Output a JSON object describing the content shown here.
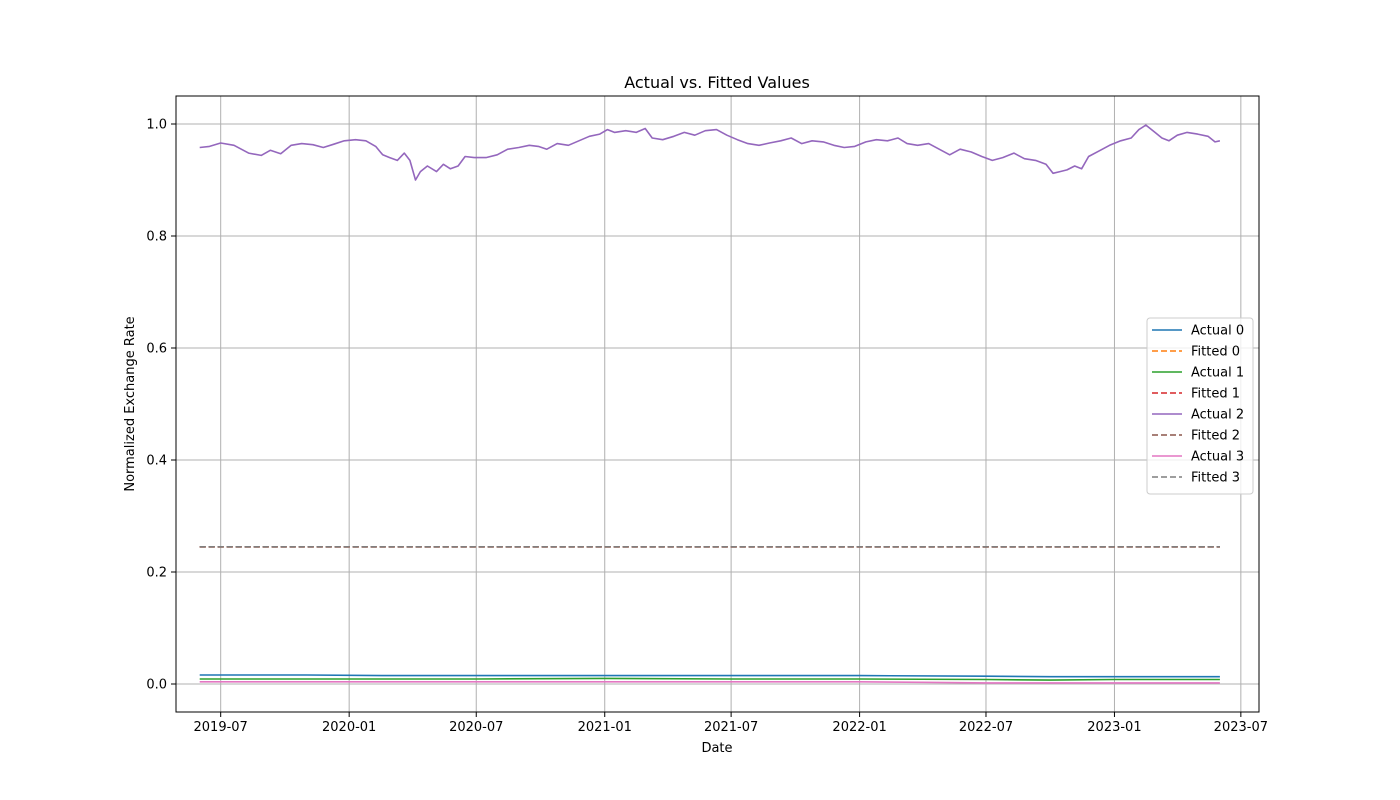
{
  "chart_data": {
    "type": "line",
    "title": "Actual vs. Fitted Values",
    "xlabel": "Date",
    "ylabel": "Normalized Exchange Rate",
    "x_range": [
      "2019-04-28",
      "2023-07-27"
    ],
    "ylim": [
      -0.05,
      1.05
    ],
    "grid": true,
    "legend_position": "center-right",
    "x_ticks": [
      "2019-07",
      "2020-01",
      "2020-07",
      "2021-01",
      "2021-07",
      "2022-01",
      "2022-07",
      "2023-01",
      "2023-07"
    ],
    "y_ticks": [
      "0.0",
      "0.2",
      "0.4",
      "0.6",
      "0.8",
      "1.0"
    ],
    "series": [
      {
        "name": "Actual 0",
        "color": "#1f77b4",
        "style": "solid",
        "points": [
          [
            "2019-06-01",
            0.016
          ],
          [
            "2019-08-01",
            0.016
          ],
          [
            "2019-11-01",
            0.016
          ],
          [
            "2020-03-01",
            0.015
          ],
          [
            "2020-07-01",
            0.015
          ],
          [
            "2021-01-01",
            0.015
          ],
          [
            "2021-07-01",
            0.015
          ],
          [
            "2022-01-01",
            0.015
          ],
          [
            "2022-07-01",
            0.014
          ],
          [
            "2022-10-01",
            0.013
          ],
          [
            "2023-01-01",
            0.013
          ],
          [
            "2023-06-01",
            0.013
          ]
        ]
      },
      {
        "name": "Fitted 0",
        "color": "#ff7f0e",
        "style": "dashed",
        "points": [
          [
            "2019-06-01",
            0.245
          ],
          [
            "2023-06-01",
            0.245
          ]
        ]
      },
      {
        "name": "Actual 1",
        "color": "#2ca02c",
        "style": "solid",
        "points": [
          [
            "2019-06-01",
            0.009
          ],
          [
            "2020-01-01",
            0.009
          ],
          [
            "2020-07-01",
            0.009
          ],
          [
            "2021-01-01",
            0.01
          ],
          [
            "2021-07-01",
            0.009
          ],
          [
            "2022-01-01",
            0.009
          ],
          [
            "2022-07-01",
            0.008
          ],
          [
            "2022-10-01",
            0.007
          ],
          [
            "2023-01-01",
            0.008
          ],
          [
            "2023-06-01",
            0.008
          ]
        ]
      },
      {
        "name": "Fitted 1",
        "color": "#d62728",
        "style": "dashed",
        "points": [
          [
            "2019-06-01",
            0.245
          ],
          [
            "2023-06-01",
            0.245
          ]
        ]
      },
      {
        "name": "Actual 2",
        "color": "#9467bd",
        "style": "solid",
        "points": [
          [
            "2019-06-01",
            0.958
          ],
          [
            "2019-06-15",
            0.96
          ],
          [
            "2019-07-01",
            0.966
          ],
          [
            "2019-07-20",
            0.962
          ],
          [
            "2019-08-10",
            0.948
          ],
          [
            "2019-08-28",
            0.944
          ],
          [
            "2019-09-10",
            0.953
          ],
          [
            "2019-09-25",
            0.947
          ],
          [
            "2019-10-10",
            0.962
          ],
          [
            "2019-10-25",
            0.965
          ],
          [
            "2019-11-10",
            0.963
          ],
          [
            "2019-11-25",
            0.958
          ],
          [
            "2019-12-10",
            0.964
          ],
          [
            "2019-12-25",
            0.97
          ],
          [
            "2020-01-10",
            0.972
          ],
          [
            "2020-01-25",
            0.97
          ],
          [
            "2020-02-08",
            0.96
          ],
          [
            "2020-02-18",
            0.945
          ],
          [
            "2020-02-28",
            0.94
          ],
          [
            "2020-03-10",
            0.935
          ],
          [
            "2020-03-20",
            0.948
          ],
          [
            "2020-03-28",
            0.935
          ],
          [
            "2020-04-05",
            0.9
          ],
          [
            "2020-04-12",
            0.915
          ],
          [
            "2020-04-22",
            0.925
          ],
          [
            "2020-05-05",
            0.915
          ],
          [
            "2020-05-15",
            0.928
          ],
          [
            "2020-05-25",
            0.92
          ],
          [
            "2020-06-05",
            0.925
          ],
          [
            "2020-06-15",
            0.942
          ],
          [
            "2020-06-28",
            0.94
          ],
          [
            "2020-07-15",
            0.94
          ],
          [
            "2020-07-31",
            0.945
          ],
          [
            "2020-08-15",
            0.955
          ],
          [
            "2020-08-31",
            0.958
          ],
          [
            "2020-09-15",
            0.962
          ],
          [
            "2020-09-28",
            0.96
          ],
          [
            "2020-10-10",
            0.955
          ],
          [
            "2020-10-25",
            0.965
          ],
          [
            "2020-11-10",
            0.962
          ],
          [
            "2020-11-25",
            0.97
          ],
          [
            "2020-12-10",
            0.978
          ],
          [
            "2020-12-25",
            0.982
          ],
          [
            "2021-01-05",
            0.99
          ],
          [
            "2021-01-15",
            0.985
          ],
          [
            "2021-01-31",
            0.988
          ],
          [
            "2021-02-15",
            0.985
          ],
          [
            "2021-02-28",
            0.992
          ],
          [
            "2021-03-10",
            0.975
          ],
          [
            "2021-03-25",
            0.972
          ],
          [
            "2021-04-10",
            0.978
          ],
          [
            "2021-04-25",
            0.985
          ],
          [
            "2021-05-10",
            0.98
          ],
          [
            "2021-05-25",
            0.988
          ],
          [
            "2021-06-10",
            0.99
          ],
          [
            "2021-06-25",
            0.98
          ],
          [
            "2021-07-10",
            0.972
          ],
          [
            "2021-07-25",
            0.965
          ],
          [
            "2021-08-10",
            0.962
          ],
          [
            "2021-08-25",
            0.966
          ],
          [
            "2021-09-10",
            0.97
          ],
          [
            "2021-09-25",
            0.975
          ],
          [
            "2021-10-10",
            0.965
          ],
          [
            "2021-10-25",
            0.97
          ],
          [
            "2021-11-10",
            0.968
          ],
          [
            "2021-11-25",
            0.962
          ],
          [
            "2021-12-10",
            0.958
          ],
          [
            "2021-12-25",
            0.96
          ],
          [
            "2022-01-10",
            0.968
          ],
          [
            "2022-01-25",
            0.972
          ],
          [
            "2022-02-10",
            0.97
          ],
          [
            "2022-02-25",
            0.975
          ],
          [
            "2022-03-10",
            0.965
          ],
          [
            "2022-03-25",
            0.962
          ],
          [
            "2022-04-10",
            0.965
          ],
          [
            "2022-04-25",
            0.955
          ],
          [
            "2022-05-10",
            0.945
          ],
          [
            "2022-05-25",
            0.955
          ],
          [
            "2022-06-10",
            0.95
          ],
          [
            "2022-06-25",
            0.942
          ],
          [
            "2022-07-10",
            0.935
          ],
          [
            "2022-07-25",
            0.94
          ],
          [
            "2022-08-10",
            0.948
          ],
          [
            "2022-08-25",
            0.938
          ],
          [
            "2022-09-10",
            0.935
          ],
          [
            "2022-09-25",
            0.928
          ],
          [
            "2022-10-05",
            0.912
          ],
          [
            "2022-10-15",
            0.915
          ],
          [
            "2022-10-25",
            0.918
          ],
          [
            "2022-11-05",
            0.925
          ],
          [
            "2022-11-15",
            0.92
          ],
          [
            "2022-11-25",
            0.942
          ],
          [
            "2022-12-10",
            0.952
          ],
          [
            "2022-12-25",
            0.962
          ],
          [
            "2023-01-10",
            0.97
          ],
          [
            "2023-01-25",
            0.975
          ],
          [
            "2023-02-05",
            0.99
          ],
          [
            "2023-02-15",
            0.998
          ],
          [
            "2023-02-28",
            0.985
          ],
          [
            "2023-03-10",
            0.975
          ],
          [
            "2023-03-20",
            0.97
          ],
          [
            "2023-04-01",
            0.98
          ],
          [
            "2023-04-15",
            0.985
          ],
          [
            "2023-04-30",
            0.982
          ],
          [
            "2023-05-15",
            0.978
          ],
          [
            "2023-05-25",
            0.968
          ],
          [
            "2023-06-01",
            0.97
          ]
        ]
      },
      {
        "name": "Fitted 2",
        "color": "#8c564b",
        "style": "dashed",
        "points": [
          [
            "2019-06-01",
            0.245
          ],
          [
            "2023-06-01",
            0.245
          ]
        ]
      },
      {
        "name": "Actual 3",
        "color": "#e377c2",
        "style": "solid",
        "points": [
          [
            "2019-06-01",
            0.004
          ],
          [
            "2020-01-01",
            0.004
          ],
          [
            "2021-01-01",
            0.004
          ],
          [
            "2022-01-01",
            0.004
          ],
          [
            "2022-04-01",
            0.003
          ],
          [
            "2022-07-01",
            0.002
          ],
          [
            "2023-01-01",
            0.002
          ],
          [
            "2023-06-01",
            0.002
          ]
        ]
      },
      {
        "name": "Fitted 3",
        "color": "#7f7f7f",
        "style": "dashed",
        "points": [
          [
            "2019-06-01",
            0.245
          ],
          [
            "2023-06-01",
            0.245
          ]
        ]
      }
    ]
  }
}
